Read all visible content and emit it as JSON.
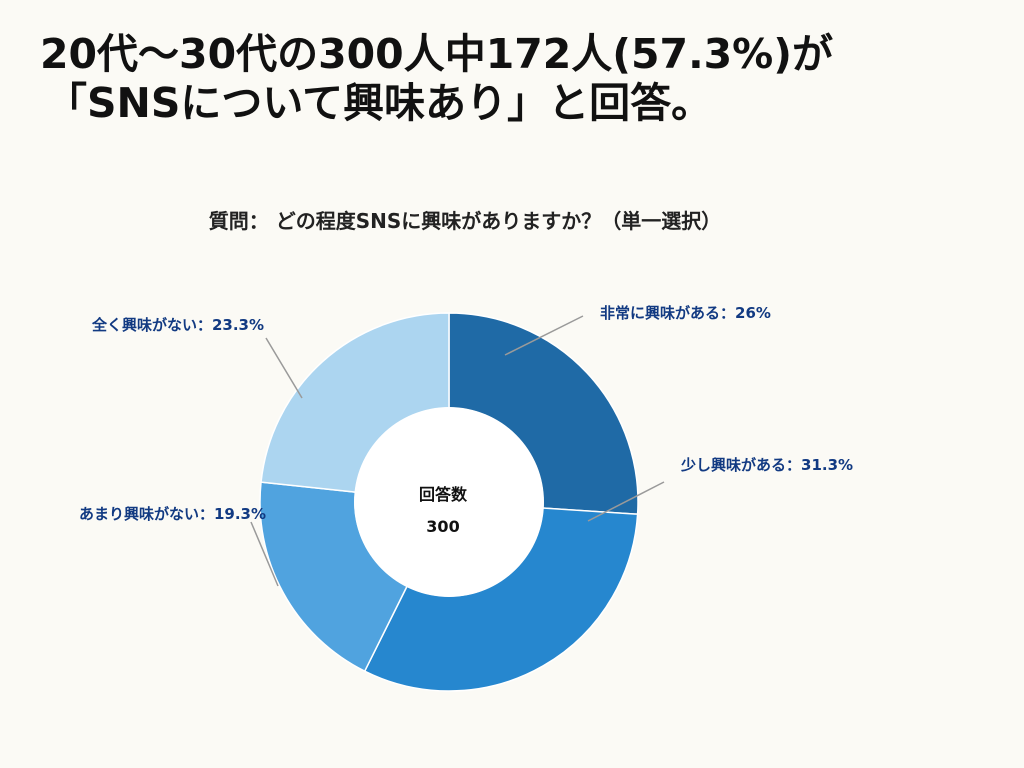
{
  "headline": {
    "line1": "20代〜30代の300人中172人(57.3%)が",
    "line2": "「SNSについて興味あり」と回答。"
  },
  "question": "質問： どの程度SNSに興味がありますか？（単一選択）",
  "chart_data": {
    "type": "pie",
    "donut": true,
    "center_label": "回答数",
    "center_value": "300",
    "slices": [
      {
        "category": "非常に興味がある",
        "value": 26,
        "label": "非常に興味がある：26%",
        "color": "#1f6aa6"
      },
      {
        "category": "少し興味がある",
        "value": 31.3,
        "label": "少し興味がある：31.3%",
        "color": "#2687cf"
      },
      {
        "category": "あまり興味がない",
        "value": 19.3,
        "label": "あまり興味がない：19.3%",
        "color": "#50a3df"
      },
      {
        "category": "全く興味がない",
        "value": 23.3,
        "label": "全く興味がない：23.3%",
        "color": "#acd5f0"
      }
    ],
    "label_color": "#123a82",
    "leader_color": "#9a9a9a"
  }
}
